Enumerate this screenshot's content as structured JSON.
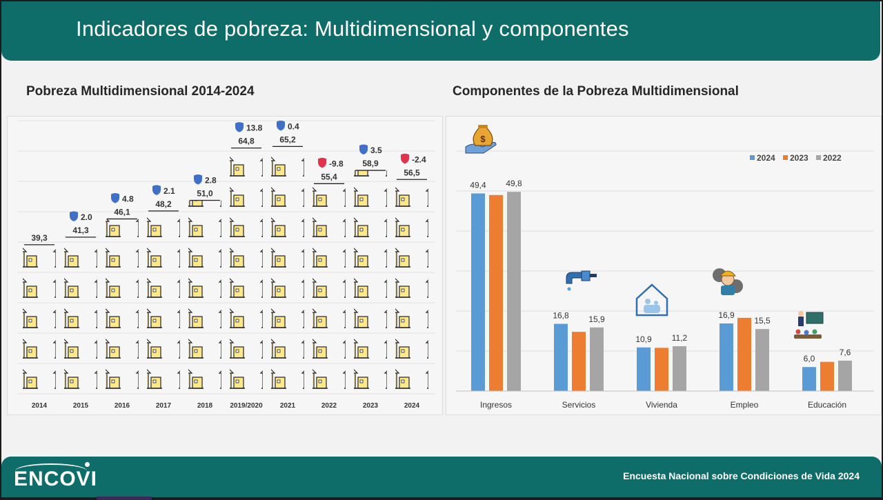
{
  "header": {
    "title": "Indicadores de pobreza: Multidimensional y componentes"
  },
  "left_chart_title": "Pobreza Multidimensional 2014-2024",
  "right_chart_title": "Componentes de la Pobreza Multidimensional",
  "footer": {
    "logo": "ENCOVI",
    "text": "Encuesta Nacional sobre Condiciones de Vida 2024"
  },
  "colors": {
    "header_bg": "#0e6d68",
    "series_2024": "#5b9bd5",
    "series_2023": "#ed7d31",
    "series_2022": "#a5a5a5",
    "change_up": "#3f6fc6",
    "change_down": "#e0344c",
    "house_fill": "#ffe88a"
  },
  "icons": [
    "money-bag-hand-icon",
    "water-tap-icon",
    "house-family-icon",
    "worker-gear-icon",
    "teacher-students-icon",
    "change-marker-icon",
    "house-pictogram-icon",
    "encovi-logo-icon"
  ],
  "chart_data": [
    {
      "type": "bar",
      "title": "Pobreza Multidimensional 2014-2024",
      "categories": [
        "2014",
        "2015",
        "2016",
        "2017",
        "2018",
        "2019/2020",
        "2021",
        "2022",
        "2023",
        "2024"
      ],
      "values": [
        39.3,
        41.3,
        46.1,
        48.2,
        51.0,
        64.8,
        65.2,
        55.4,
        58.9,
        56.5
      ],
      "value_labels": [
        "39,3",
        "41,3",
        "46,1",
        "48,2",
        "51,0",
        "64,8",
        "65,2",
        "55,4",
        "58,9",
        "56,5"
      ],
      "changes": [
        null,
        "2.0",
        "4.8",
        "2.1",
        "2.8",
        "13.8",
        "0.4",
        "-9.8",
        "3.5",
        "-2.4"
      ],
      "change_direction": [
        null,
        "up",
        "up",
        "up",
        "up",
        "up",
        "up",
        "down",
        "up",
        "down"
      ],
      "ylim": [
        0,
        70
      ],
      "grid": true,
      "legend": "none",
      "mark": "house pictograms"
    },
    {
      "type": "bar",
      "title": "Componentes de la Pobreza Multidimensional",
      "categories": [
        "Ingresos",
        "Servicios",
        "Vivienda",
        "Empleo",
        "Educación"
      ],
      "series": [
        {
          "name": "2024",
          "values": [
            49.4,
            16.8,
            10.9,
            16.9,
            6.0
          ],
          "labels": [
            "49,4",
            "16,8",
            "10,9",
            "16,9",
            "6,0"
          ]
        },
        {
          "name": "2023",
          "values": [
            49.0,
            14.8,
            10.8,
            18.3,
            7.3
          ],
          "labels": [
            "",
            "",
            "",
            "",
            ""
          ]
        },
        {
          "name": "2022",
          "values": [
            49.8,
            15.9,
            11.2,
            15.5,
            7.6
          ],
          "labels": [
            "49,8",
            "15,9",
            "11,2",
            "15,5",
            "7,6"
          ]
        }
      ],
      "ylim": [
        0,
        60
      ],
      "grid": true,
      "legend": "top-right"
    }
  ]
}
